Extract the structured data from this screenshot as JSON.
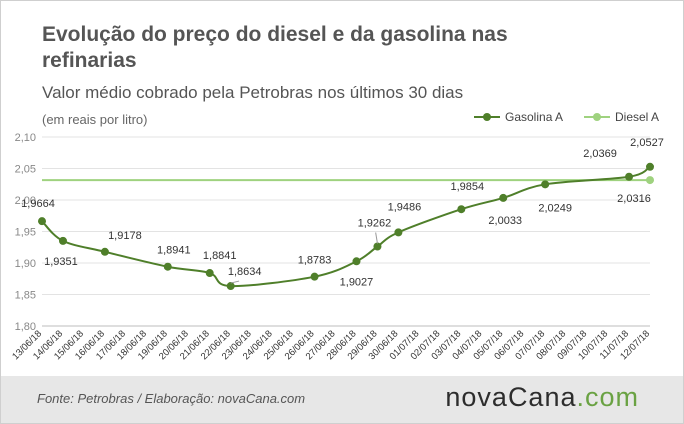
{
  "header": {
    "title": "Evolução do preço do diesel e da gasolina nas refinarias",
    "subtitle": "Valor médio cobrado pela Petrobras nos últimos 30 dias",
    "unit_label": "(em reais por litro)"
  },
  "footer": {
    "source": "Fonte: Petrobras / Elaboração: novaCana.com",
    "logo_text_a": "nova",
    "logo_text_b": "Cana",
    "logo_text_c": ".com"
  },
  "chart_data": {
    "type": "line",
    "categories": [
      "13/06/18",
      "14/06/18",
      "15/06/18",
      "16/06/18",
      "17/06/18",
      "18/06/18",
      "19/06/18",
      "20/06/18",
      "21/06/18",
      "22/06/18",
      "23/06/18",
      "24/06/18",
      "25/06/18",
      "26/06/18",
      "27/06/18",
      "28/06/18",
      "29/06/18",
      "30/06/18",
      "01/07/18",
      "02/07/18",
      "03/07/18",
      "04/07/18",
      "05/07/18",
      "06/07/18",
      "07/07/18",
      "08/07/18",
      "09/07/18",
      "10/07/18",
      "11/07/18",
      "12/07/18"
    ],
    "ylim": [
      1.8,
      2.1
    ],
    "yticks": [
      1.8,
      1.85,
      1.9,
      1.95,
      2.0,
      2.05,
      2.1
    ],
    "ytick_labels": [
      "1,80",
      "1,85",
      "1,90",
      "1,95",
      "2,00",
      "2,05",
      "2,10"
    ],
    "legend_position": "top-right",
    "series": [
      {
        "name": "Gasolina A",
        "color": "#4f7f2a",
        "points": [
          {
            "i": 0,
            "v": 1.9664,
            "label": "1,9664"
          },
          {
            "i": 1,
            "v": 1.9351,
            "label": "1,9351"
          },
          {
            "i": 3,
            "v": 1.9178,
            "label": "1,9178"
          },
          {
            "i": 6,
            "v": 1.8941,
            "label": "1,8941"
          },
          {
            "i": 8,
            "v": 1.8841,
            "label": "1,8841"
          },
          {
            "i": 9,
            "v": 1.8634,
            "label": "1,8634"
          },
          {
            "i": 13,
            "v": 1.8783,
            "label": "1,8783"
          },
          {
            "i": 15,
            "v": 1.9027,
            "label": "1,9027"
          },
          {
            "i": 16,
            "v": 1.9262,
            "label": "1,9262"
          },
          {
            "i": 17,
            "v": 1.9486,
            "label": "1,9486"
          },
          {
            "i": 20,
            "v": 1.9854,
            "label": "1,9854"
          },
          {
            "i": 22,
            "v": 2.0033,
            "label": "2,0033"
          },
          {
            "i": 24,
            "v": 2.0249,
            "label": "2,0249"
          },
          {
            "i": 28,
            "v": 2.0369,
            "label": "2,0369"
          },
          {
            "i": 29,
            "v": 2.0527,
            "label": "2,0527"
          }
        ]
      },
      {
        "name": "Diesel A",
        "color": "#9fd27f",
        "points": [
          {
            "i": 0,
            "v": 2.0316,
            "label": ""
          },
          {
            "i": 29,
            "v": 2.0316,
            "label": "2,0316"
          }
        ]
      }
    ]
  }
}
